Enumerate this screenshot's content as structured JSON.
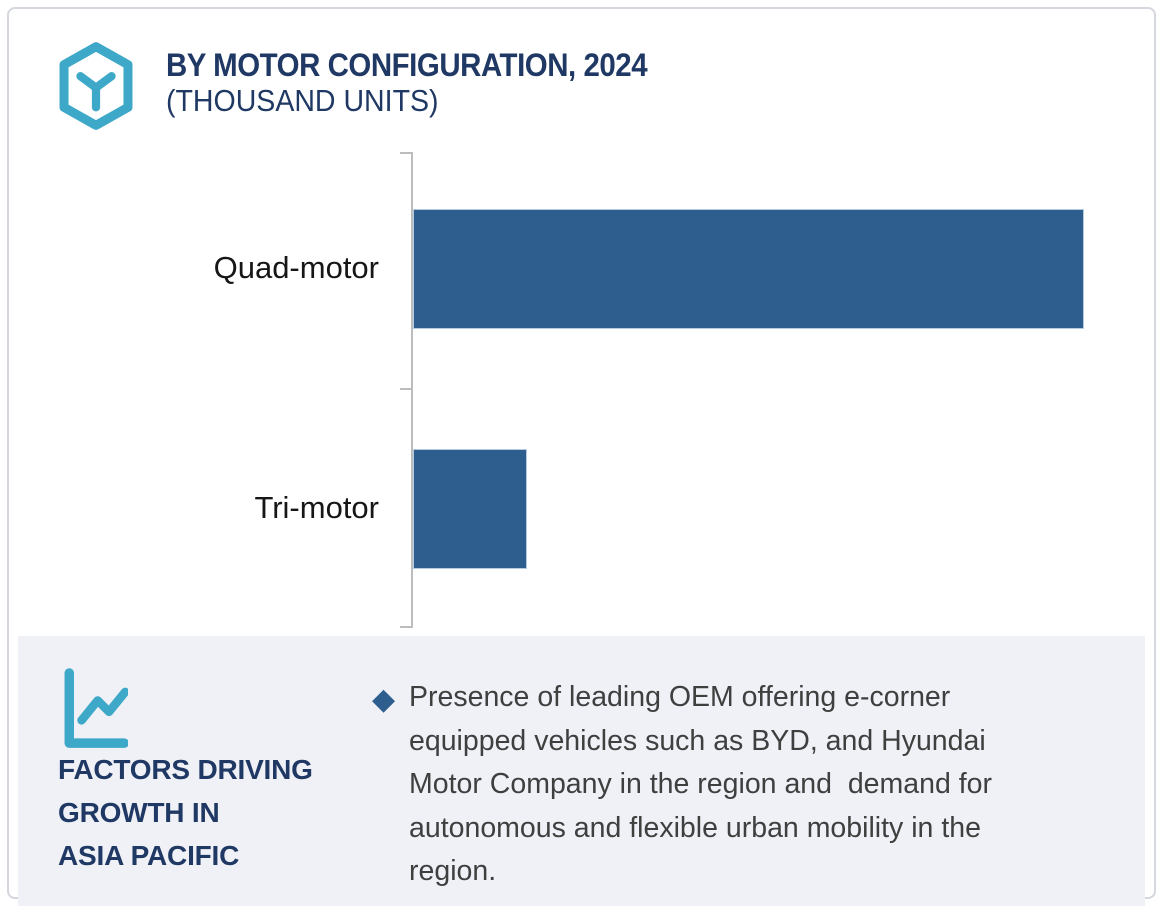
{
  "header": {
    "logo_icon": "hexagon-cube-icon",
    "title": "BY MOTOR CONFIGURATION, 2024",
    "subtitle": "(THOUSAND UNITS)"
  },
  "chart_data": {
    "type": "bar",
    "orientation": "horizontal",
    "title": "BY MOTOR CONFIGURATION, 2024 (THOUSAND UNITS)",
    "units": "Thousand Units",
    "categories": [
      "Quad-motor",
      "Tri-motor"
    ],
    "values": [
      100,
      17
    ],
    "xlim": [
      0,
      113
    ],
    "value_axis_labeled": false,
    "gridlines": false,
    "legend": false,
    "bar_color": "#2d5e8e"
  },
  "footer": {
    "icon": "line-chart-icon",
    "heading_lines": [
      "FACTORS DRIVING",
      "GROWTH IN",
      "ASIA PACIFIC"
    ],
    "bullet_icon": "diamond-bullet",
    "bullet_lines": [
      "Presence of leading OEM offering e-corner",
      "equipped vehicles such as BYD, and Hyundai",
      "Motor Company in the region and  demand for",
      "autonomous and flexible urban mobility in the",
      "region."
    ],
    "bullet_text": "Presence of leading OEM offering e-corner equipped vehicles such as BYD, and Hyundai Motor Company in the region and  demand for autonomous and flexible urban mobility in the region."
  },
  "colors": {
    "accent_teal": "#3da8c7",
    "navy": "#1f3864",
    "bar_blue": "#2d5e8e",
    "footer_bg": "#eff1f6",
    "text_dark": "#3f3f3f",
    "axis_gray": "#bdbdbd",
    "card_border": "#d4d7de"
  }
}
